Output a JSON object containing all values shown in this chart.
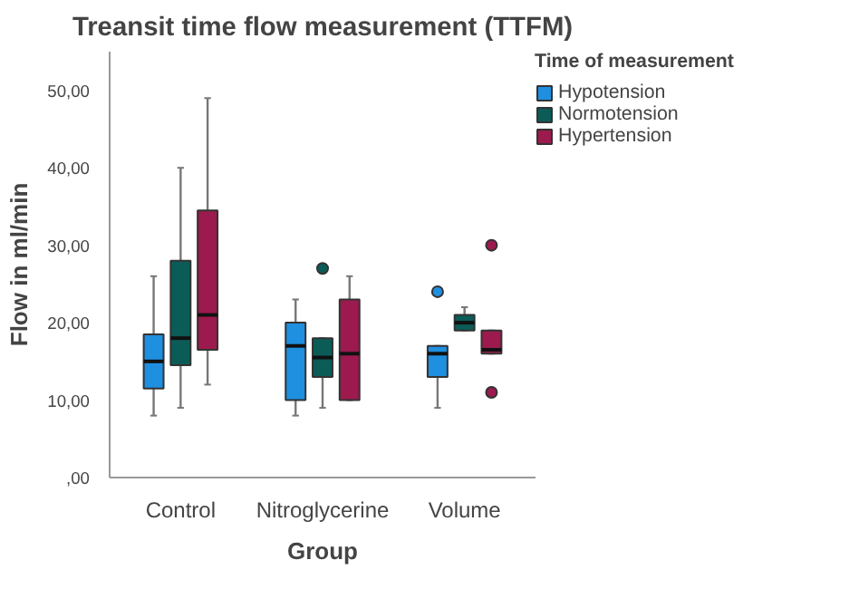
{
  "chart_data": {
    "type": "box",
    "title": "Treansit time flow measurement (TTFM)",
    "xlabel": "Group",
    "ylabel": "Flow in ml/min",
    "legend_title": "Time of measurement",
    "categories": [
      "Control",
      "Nitroglycerine",
      "Volume"
    ],
    "series": [
      {
        "name": "Hypotension",
        "color": "#1f8fe0",
        "boxes": [
          {
            "low": 8,
            "q1": 11.5,
            "median": 15,
            "q3": 18.5,
            "high": 26
          },
          {
            "low": 8,
            "q1": 10,
            "median": 17,
            "q3": 20,
            "high": 23
          },
          {
            "low": 9,
            "q1": 13,
            "median": 16,
            "q3": 17,
            "high": 17,
            "outliers": [
              24
            ]
          }
        ]
      },
      {
        "name": "Normotension",
        "color": "#0b5c57",
        "boxes": [
          {
            "low": 9,
            "q1": 14.5,
            "median": 18,
            "q3": 28,
            "high": 40
          },
          {
            "low": 9,
            "q1": 13,
            "median": 15.5,
            "q3": 18,
            "high": 18,
            "outliers": [
              27
            ]
          },
          {
            "low": 19,
            "q1": 19,
            "median": 20,
            "q3": 21,
            "high": 22
          }
        ]
      },
      {
        "name": "Hypertension",
        "color": "#9c1a4e",
        "boxes": [
          {
            "low": 12,
            "q1": 16.5,
            "median": 21,
            "q3": 34.5,
            "high": 49
          },
          {
            "low": 10,
            "q1": 10,
            "median": 16,
            "q3": 23,
            "high": 26
          },
          {
            "low": 16,
            "q1": 16,
            "median": 16.5,
            "q3": 19,
            "high": 19,
            "outliers": [
              11,
              30
            ]
          }
        ]
      }
    ],
    "ylim": [
      0,
      55
    ],
    "yticks": [
      {
        "value": 0,
        "label": ",00"
      },
      {
        "value": 10,
        "label": "10,00"
      },
      {
        "value": 20,
        "label": "20,00"
      },
      {
        "value": 30,
        "label": "30,00"
      },
      {
        "value": 40,
        "label": "40,00"
      },
      {
        "value": 50,
        "label": "50,00"
      }
    ],
    "legend": "right",
    "grid": false
  }
}
